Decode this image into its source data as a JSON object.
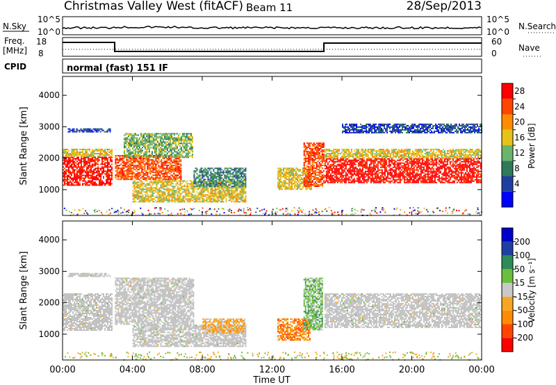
{
  "header": {
    "station": "Christmas Valley West (fitACF)",
    "beam": "Beam 11",
    "date": "28/Sep/2013"
  },
  "top_panels": {
    "nsky_label": "N.Sky",
    "nsearch_label": "N.Search",
    "noise_ticks": [
      "10^5",
      "10^0"
    ],
    "freq_label_1": "Freq.",
    "freq_label_2": "[MHz]",
    "freq_ticks": [
      "18",
      "8"
    ],
    "nave_label": "Nave",
    "nave_ticks": [
      "60",
      "0"
    ],
    "cpid_label": "CPID",
    "cpid_text": "normal (fast) 151 IF"
  },
  "colors": {
    "power_scale": [
      "#0000ff",
      "#1f3fa0",
      "#2e7a5a",
      "#6bb46b",
      "#e6c21a",
      "#ff8c00",
      "#ff4500",
      "#ff0000"
    ],
    "velocity_scale": [
      "#ff0000",
      "#ff4500",
      "#ff8c00",
      "#f5a623",
      "#c8c8c8",
      "#6bbf3a",
      "#2e8b57",
      "#1f3fa0",
      "#0000cc"
    ],
    "ground_scatter": "#c0c0c0"
  },
  "chart_data": [
    {
      "type": "heatmap",
      "panel": "power",
      "ylabel": "Slant Range [km]",
      "y_ticks": [
        1000,
        2000,
        3000,
        4000
      ],
      "ylim": [
        180,
        4600
      ],
      "xlim": [
        0,
        24
      ],
      "x_ticks": [
        "00:00",
        "04:00",
        "08:00",
        "12:00",
        "16:00",
        "20:00",
        "00:00"
      ],
      "colorbar_label": "Power [dB]",
      "colorbar_ticks": [
        "28",
        "24",
        "20",
        "16",
        "12",
        "8",
        "4"
      ],
      "features": [
        {
          "t0": 0.0,
          "t1": 2.9,
          "r0": 1100,
          "r1": 2050,
          "level": 7
        },
        {
          "t0": 0.0,
          "t1": 2.9,
          "r0": 2050,
          "r1": 2300,
          "level": 4
        },
        {
          "t0": 3.0,
          "t1": 6.8,
          "r0": 1300,
          "r1": 2100,
          "level": 6
        },
        {
          "t0": 3.5,
          "t1": 7.5,
          "r0": 2000,
          "r1": 2800,
          "level": 3
        },
        {
          "t0": 4.0,
          "t1": 10.5,
          "r0": 600,
          "r1": 1300,
          "level": 4
        },
        {
          "t0": 7.5,
          "t1": 10.5,
          "r0": 1100,
          "r1": 1700,
          "level": 2
        },
        {
          "t0": 0.3,
          "t1": 2.8,
          "r0": 2800,
          "r1": 2950,
          "level": 1
        },
        {
          "t0": 12.3,
          "t1": 14.3,
          "r0": 1000,
          "r1": 1700,
          "level": 4
        },
        {
          "t0": 13.8,
          "t1": 15.0,
          "r0": 1100,
          "r1": 2500,
          "level": 6
        },
        {
          "t0": 15.0,
          "t1": 24.0,
          "r0": 1200,
          "r1": 2000,
          "level": 7
        },
        {
          "t0": 15.0,
          "t1": 24.0,
          "r0": 2000,
          "r1": 2300,
          "level": 4
        },
        {
          "t0": 16.0,
          "t1": 24.0,
          "r0": 2800,
          "r1": 3100,
          "level": 1
        }
      ]
    },
    {
      "type": "heatmap",
      "panel": "velocity",
      "ylabel": "Slant Range [km]",
      "y_ticks": [
        1000,
        2000,
        3000,
        4000
      ],
      "ylim": [
        180,
        4600
      ],
      "xlim": [
        0,
        24
      ],
      "x_ticks": [
        "00:00",
        "04:00",
        "08:00",
        "12:00",
        "16:00",
        "20:00",
        "00:00"
      ],
      "xlabel": "Time UT",
      "colorbar_label": "Velocity [m s⁻¹]",
      "colorbar_ticks": [
        "200",
        "100",
        "50",
        "15",
        "-15",
        "-50",
        "-100",
        "-200"
      ],
      "features": [
        {
          "t0": 0.0,
          "t1": 2.9,
          "r0": 1100,
          "r1": 2300,
          "level": 4
        },
        {
          "t0": 3.0,
          "t1": 7.5,
          "r0": 1300,
          "r1": 2800,
          "level": 4
        },
        {
          "t0": 4.0,
          "t1": 10.5,
          "r0": 600,
          "r1": 1300,
          "level": 4
        },
        {
          "t0": 8.0,
          "t1": 10.5,
          "r0": 1000,
          "r1": 1500,
          "level": 3
        },
        {
          "t0": 12.3,
          "t1": 14.2,
          "r0": 800,
          "r1": 1500,
          "level": 2
        },
        {
          "t0": 13.8,
          "t1": 14.9,
          "r0": 1100,
          "r1": 2800,
          "level": 5
        },
        {
          "t0": 15.0,
          "t1": 24.0,
          "r0": 1200,
          "r1": 2300,
          "level": 4
        },
        {
          "t0": 0.3,
          "t1": 2.8,
          "r0": 2800,
          "r1": 2950,
          "level": 4
        }
      ]
    }
  ]
}
